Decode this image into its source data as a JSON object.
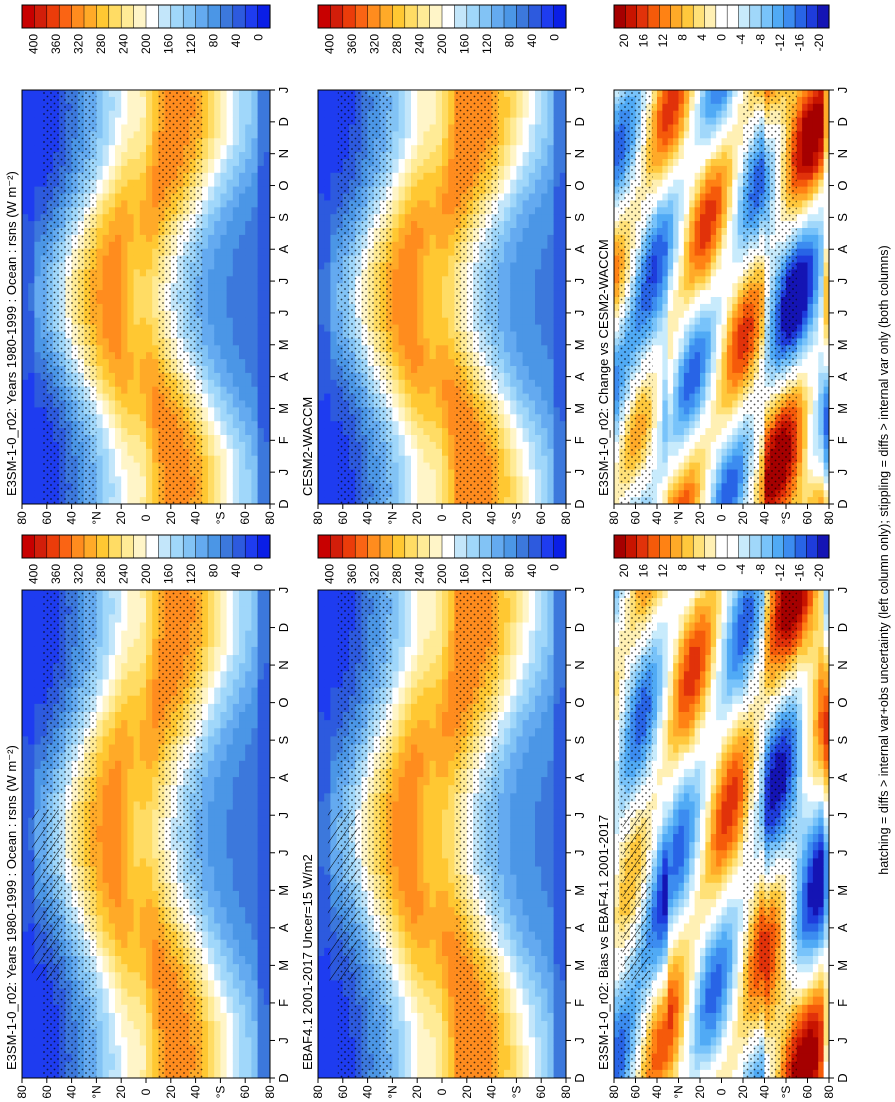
{
  "footnote": "hatching = diffs > internal var+obs uncertainty (left column only); stippling = diffs > internal var only (both columns)",
  "month_labels": [
    "D",
    "J",
    "F",
    "M",
    "A",
    "M",
    "J",
    "J",
    "A",
    "S",
    "O",
    "N",
    "D",
    "J"
  ],
  "lat_labels": [
    "80",
    "60",
    "40",
    "°N",
    "20",
    "0",
    "20",
    "40",
    "°S",
    "60",
    "80"
  ],
  "colors": {
    "abs_scale": [
      "#0a1ee6",
      "#1e3cf0",
      "#2d5ade",
      "#3c78dc",
      "#4b96e6",
      "#64aaf0",
      "#82c3f5",
      "#a0d7fa",
      "#c3e6fa",
      "#ffffff",
      "#fff5c8",
      "#ffeb96",
      "#ffdc64",
      "#ffc832",
      "#ffaa28",
      "#ff8c1e",
      "#fa6414",
      "#eb3c0a",
      "#d21e0a",
      "#c80000"
    ],
    "diff_scale": [
      "#1414b4",
      "#1e3cdc",
      "#2864e6",
      "#3c8cf0",
      "#50aaf5",
      "#78c3fa",
      "#a0d7fa",
      "#c8ebfc",
      "#ffffff",
      "#ffffff",
      "#fff0b4",
      "#ffe178",
      "#ffc83c",
      "#ffaa28",
      "#ff8214",
      "#f55a0a",
      "#e1320a",
      "#c81400",
      "#a50000"
    ]
  },
  "panels": [
    {
      "id": "model-left",
      "title": "E3SM-1-0_r02: Years 1980-1999 : Ocean : rsns (W m⁻²)",
      "kind": "abs",
      "hatch": true
    },
    {
      "id": "obs",
      "title": "EBAF4.1 2001-2017 Uncer=15 W/m2",
      "kind": "abs",
      "hatch": true
    },
    {
      "id": "bias",
      "title": "E3SM-1-0_r02: Bias vs EBAF4.1 2001-2017",
      "kind": "diff",
      "hatch": true
    },
    {
      "id": "model-right",
      "title": "E3SM-1-0_r02: Years 1980-1999 : Ocean : rsns (W m⁻²)",
      "kind": "abs",
      "hatch": false
    },
    {
      "id": "ref-model",
      "title": "CESM2-WACCM",
      "kind": "abs",
      "hatch": false
    },
    {
      "id": "change",
      "title": "E3SM-1-0_r02: Change vs CESM2-WACCM",
      "kind": "diff",
      "hatch": false
    }
  ],
  "colorbars": {
    "abs_labels": [
      "400",
      "360",
      "320",
      "280",
      "240",
      "200",
      "160",
      "120",
      "80",
      "40",
      "0"
    ],
    "diff_labels": [
      "20",
      "16",
      "12",
      "8",
      "4",
      "0",
      "-4",
      "-8",
      "-12",
      "-16",
      "-20"
    ]
  },
  "chart_data": [
    {
      "type": "heatmap",
      "title": "E3SM-1-0_r02: Years 1980-1999 : Ocean : rsns (W m⁻²)",
      "x": "month (D to J)",
      "y": "latitude 80°N to 80°S",
      "zlim": [
        0,
        400
      ],
      "colorbar_ticks": [
        400,
        360,
        320,
        280,
        240,
        200,
        160,
        120,
        80,
        40,
        0
      ]
    },
    {
      "type": "heatmap",
      "title": "EBAF4.1 2001-2017 Uncer=15 W/m2",
      "x": "month (D to J)",
      "y": "latitude 80°N to 80°S",
      "zlim": [
        0,
        400
      ],
      "colorbar_ticks": [
        400,
        360,
        320,
        280,
        240,
        200,
        160,
        120,
        80,
        40,
        0
      ]
    },
    {
      "type": "heatmap",
      "title": "E3SM-1-0_r02: Bias vs EBAF4.1 2001-2017",
      "x": "month (D to J)",
      "y": "latitude 80°N to 80°S",
      "zlim": [
        -20,
        20
      ],
      "colorbar_ticks": [
        20,
        16,
        12,
        8,
        4,
        0,
        -4,
        -8,
        -12,
        -16,
        -20
      ]
    },
    {
      "type": "heatmap",
      "title": "E3SM-1-0_r02: Years 1980-1999 : Ocean : rsns (W m⁻²)",
      "x": "month (D to J)",
      "y": "latitude 80°N to 80°S",
      "zlim": [
        0,
        400
      ],
      "colorbar_ticks": [
        400,
        360,
        320,
        280,
        240,
        200,
        160,
        120,
        80,
        40,
        0
      ]
    },
    {
      "type": "heatmap",
      "title": "CESM2-WACCM",
      "x": "month (D to J)",
      "y": "latitude 80°N to 80°S",
      "zlim": [
        0,
        400
      ],
      "colorbar_ticks": [
        400,
        360,
        320,
        280,
        240,
        200,
        160,
        120,
        80,
        40,
        0
      ]
    },
    {
      "type": "heatmap",
      "title": "E3SM-1-0_r02: Change vs CESM2-WACCM",
      "x": "month (D to J)",
      "y": "latitude 80°N to 80°S",
      "zlim": [
        -20,
        20
      ],
      "colorbar_ticks": [
        20,
        16,
        12,
        8,
        4,
        0,
        -4,
        -8,
        -12,
        -16,
        -20
      ]
    }
  ]
}
